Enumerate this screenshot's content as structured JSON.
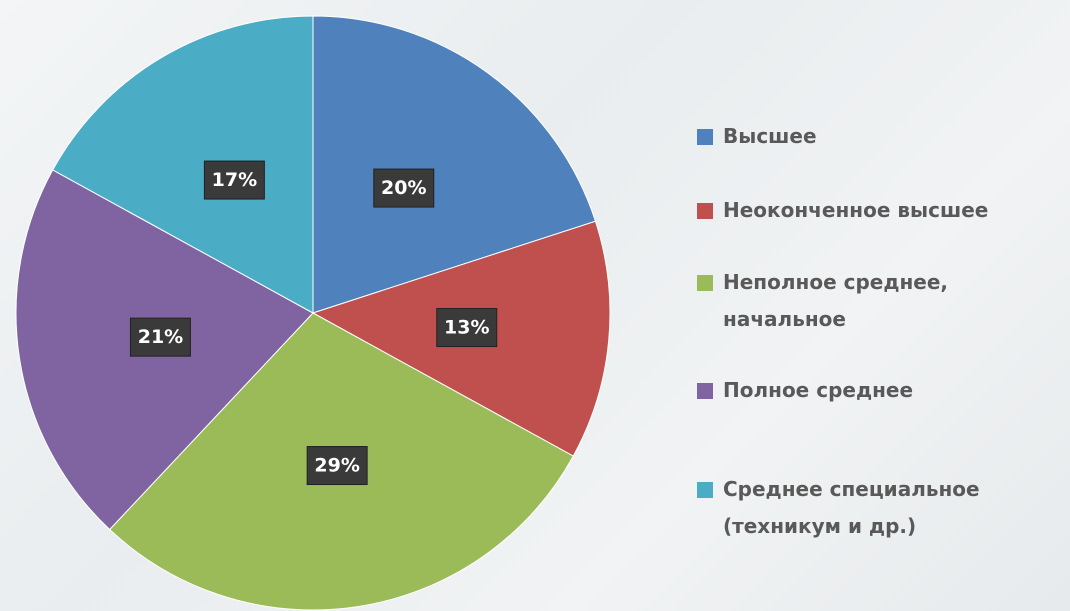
{
  "chart_data": {
    "type": "pie",
    "categories": [
      "Высшее",
      "Неоконченное высшее",
      "Неполное среднее, начальное",
      "Полное среднее",
      "Среднее специальное (техникум и др.)"
    ],
    "values": [
      20,
      13,
      29,
      21,
      17
    ],
    "value_labels": [
      "20%",
      "13%",
      "29%",
      "21%",
      "17%"
    ],
    "colors": [
      "#4f81bd",
      "#c0504d",
      "#9bbb59",
      "#8064a2",
      "#4bacc6"
    ],
    "legend": "right"
  }
}
